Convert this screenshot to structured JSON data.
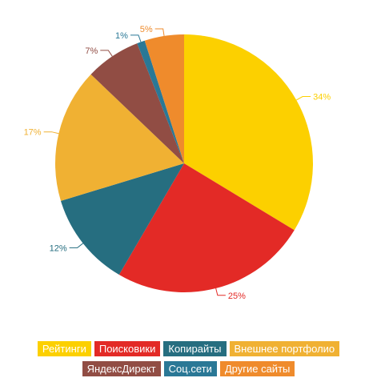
{
  "chart_data": {
    "type": "pie",
    "slices": [
      {
        "label": "Рейтинги",
        "value": 34,
        "display": "34%",
        "color": "#fcd000"
      },
      {
        "label": "Поисковики",
        "value": 25,
        "display": "25%",
        "color": "#e32a26"
      },
      {
        "label": "Копирайты",
        "value": 12,
        "display": "12%",
        "color": "#266e80"
      },
      {
        "label": "Внешнее портфолио",
        "value": 17,
        "display": "17%",
        "color": "#f0b133"
      },
      {
        "label": "ЯндексДирект",
        "value": 7,
        "display": "7%",
        "color": "#914d44"
      },
      {
        "label": "Соц.сети",
        "value": 1,
        "display": "1%",
        "color": "#2a7896"
      },
      {
        "label": "Другие сайты",
        "value": 5,
        "display": "5%",
        "color": "#ef8b2c"
      }
    ],
    "legend_position": "bottom",
    "start_angle": "12 o'clock, clockwise"
  }
}
